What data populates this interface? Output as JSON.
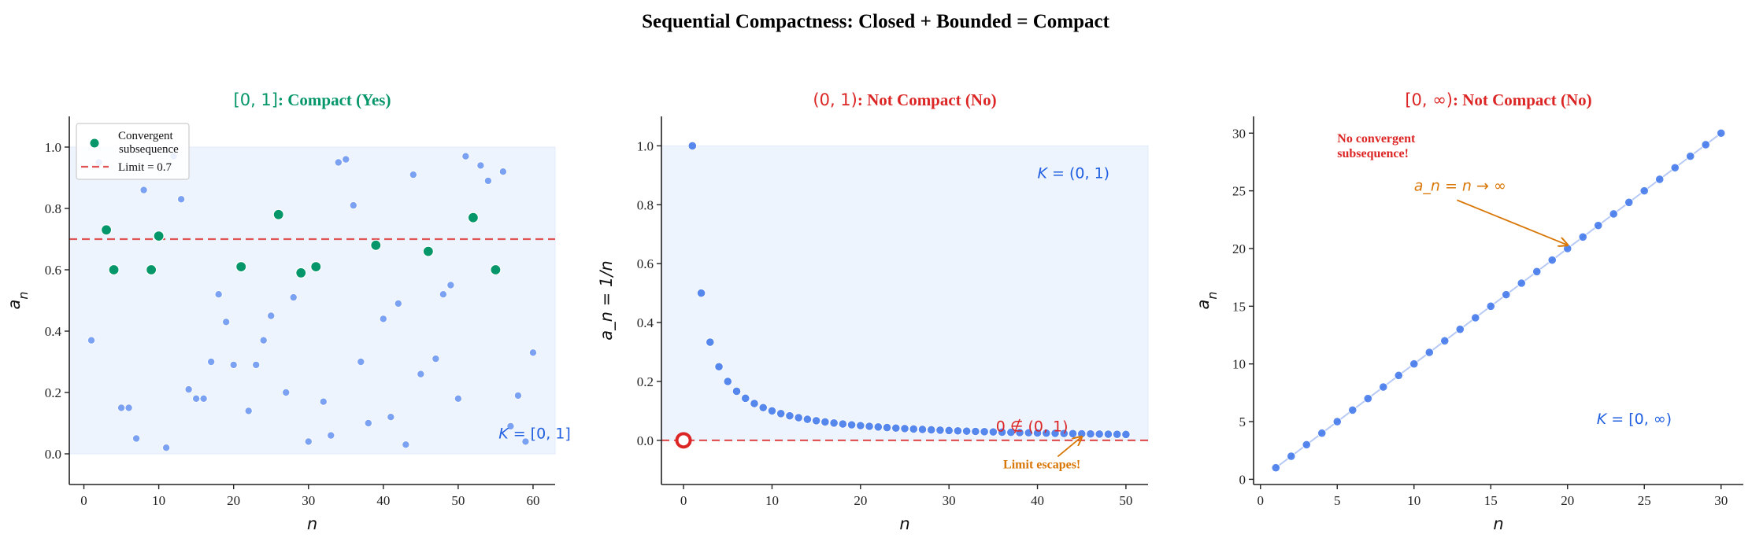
{
  "title": "Sequential Compactness: Closed + Bounded = Compact",
  "chart_data": [
    {
      "type": "scatter",
      "title_math": "[0, 1]",
      "title_text": ": Compact (Yes)",
      "title_color": "#059669",
      "xlabel": "n",
      "ylabel": "a_n",
      "xlim": [
        -1.95,
        62.95
      ],
      "ylim": [
        -0.1,
        1.1
      ],
      "xticks": [
        0,
        10,
        20,
        30,
        40,
        50,
        60
      ],
      "xtick_labels": [
        "0",
        "10",
        "20",
        "30",
        "40",
        "50",
        "60"
      ],
      "yticks": [
        0,
        0.2,
        0.4,
        0.6,
        0.8,
        1.0
      ],
      "ytick_labels": [
        "0.0",
        "0.2",
        "0.4",
        "0.6",
        "0.8",
        "1.0"
      ],
      "shaded_region": [
        0,
        1
      ],
      "sequence": {
        "color": "#4a7fec",
        "x": [
          1,
          2,
          3,
          4,
          5,
          6,
          7,
          8,
          9,
          10,
          11,
          12,
          13,
          14,
          15,
          16,
          17,
          18,
          19,
          20,
          21,
          22,
          23,
          24,
          25,
          26,
          27,
          28,
          29,
          30,
          31,
          32,
          33,
          34,
          35,
          36,
          37,
          38,
          39,
          40,
          41,
          42,
          43,
          44,
          45,
          46,
          47,
          48,
          49,
          50,
          51,
          52,
          53,
          54,
          55,
          56,
          57,
          58,
          59,
          60
        ],
        "y": [
          0.37,
          0.95,
          0.73,
          0.6,
          0.15,
          0.15,
          0.05,
          0.86,
          0.6,
          0.71,
          0.02,
          0.97,
          0.83,
          0.21,
          0.18,
          0.18,
          0.3,
          0.52,
          0.43,
          0.29,
          0.61,
          0.14,
          0.29,
          0.37,
          0.45,
          0.78,
          0.2,
          0.51,
          0.59,
          0.04,
          0.61,
          0.17,
          0.06,
          0.95,
          0.96,
          0.81,
          0.3,
          0.1,
          0.68,
          0.44,
          0.12,
          0.49,
          0.03,
          0.91,
          0.26,
          0.66,
          0.31,
          0.52,
          0.55,
          0.18,
          0.97,
          0.77,
          0.94,
          0.89,
          0.6,
          0.92,
          0.09,
          0.19,
          0.04,
          0.33
        ]
      },
      "subsequence": {
        "name": "Convergent subsequence",
        "legend_lines": [
          "Convergent",
          "subsequence"
        ],
        "color": "#059669",
        "x": [
          3,
          4,
          9,
          10,
          21,
          26,
          29,
          31,
          39,
          46,
          52,
          55
        ],
        "y": [
          0.73,
          0.6,
          0.6,
          0.71,
          0.61,
          0.78,
          0.59,
          0.61,
          0.68,
          0.66,
          0.77,
          0.6
        ]
      },
      "hline": {
        "name": "Limit = 0.7",
        "y": 0.7,
        "color": "#e05555",
        "style": "dashed"
      },
      "legend": "upper-left",
      "annotations": [
        {
          "text": "K = [0, 1]",
          "x": 55.4,
          "y": 0.05,
          "color": "#1f5fe0"
        }
      ]
    },
    {
      "type": "scatter",
      "title_math": "(0, 1)",
      "title_text": ": Not Compact (No)",
      "title_color": "#dc2626",
      "xlabel": "n",
      "ylabel": "a_n = 1/n",
      "xlim": [
        -2.5,
        52.5
      ],
      "ylim": [
        -0.15,
        1.1
      ],
      "xticks": [
        0,
        10,
        20,
        30,
        40,
        50
      ],
      "xtick_labels": [
        "0",
        "10",
        "20",
        "30",
        "40",
        "50"
      ],
      "yticks": [
        0,
        0.2,
        0.4,
        0.6,
        0.8,
        1.0
      ],
      "ytick_labels": [
        "0.0",
        "0.2",
        "0.4",
        "0.6",
        "0.8",
        "1.0"
      ],
      "shaded_region": [
        0,
        1
      ],
      "sequence": {
        "color": "#3b73ea",
        "formula": "1/n",
        "n_range": [
          1,
          50
        ]
      },
      "limit_point": {
        "x": 0,
        "y": 0,
        "color": "#dc2626",
        "marker": "open-circle"
      },
      "hline": {
        "y": 0,
        "color": "#e05555",
        "style": "dashed"
      },
      "annotations": [
        {
          "text": "K = (0, 1)",
          "x": 40,
          "y": 0.89,
          "color": "#1f5fe0"
        },
        {
          "text": "0 ∉ (0, 1)",
          "x": 35.3,
          "y": 0.03,
          "color": "#dc2626"
        },
        {
          "text": "Limit escapes!",
          "x": 40.5,
          "y": -0.095,
          "color": "#d97706",
          "arrow_to": [
            45,
            0.012
          ],
          "arrow_from": [
            42.3,
            -0.055
          ]
        }
      ]
    },
    {
      "type": "line",
      "title_math": "[0, ∞)",
      "title_text": ": Not Compact (No)",
      "title_color": "#dc2626",
      "xlabel": "n",
      "ylabel": "a_n",
      "xlim": [
        -0.45,
        31.45
      ],
      "ylim": [
        -0.45,
        31.45
      ],
      "xticks": [
        0,
        5,
        10,
        15,
        20,
        25,
        30
      ],
      "xtick_labels": [
        "0",
        "5",
        "10",
        "15",
        "20",
        "25",
        "30"
      ],
      "yticks": [
        0,
        5,
        10,
        15,
        20,
        25,
        30
      ],
      "ytick_labels": [
        "0",
        "5",
        "10",
        "15",
        "20",
        "25",
        "30"
      ],
      "sequence": {
        "color": "#3b73ea",
        "line_color": "#b7c9f5",
        "formula": "n",
        "n_range": [
          1,
          30
        ]
      },
      "annotations": [
        {
          "text": "No convergent",
          "text2": "subsequence!",
          "x": 5,
          "y": 29.2,
          "color": "#dc2626"
        },
        {
          "text": "a_n = n → ∞",
          "x": 10,
          "y": 25,
          "color": "#d97706",
          "arrow_from": [
            12.8,
            24.2
          ],
          "arrow_to": [
            20,
            20.3
          ]
        },
        {
          "text": "K = [0, ∞)",
          "x": 21.9,
          "y": 4.8,
          "color": "#1f5fe0"
        }
      ]
    }
  ]
}
